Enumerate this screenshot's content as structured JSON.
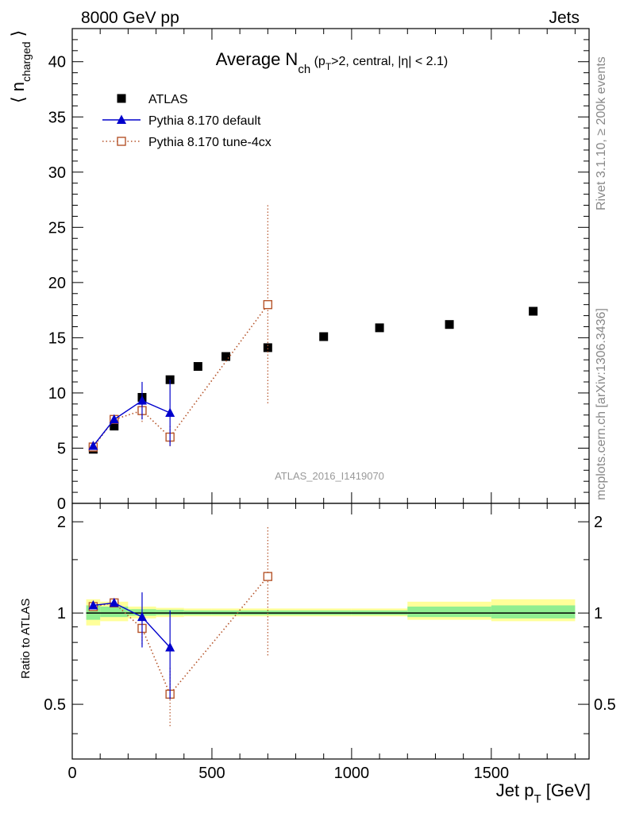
{
  "header": {
    "left": "8000 GeV pp",
    "right": "Jets"
  },
  "side_labels": {
    "rivet": "Rivet 3.1.10, ≥ 200k events",
    "mcplots": "mcplots.cern.ch [arXiv:1306.3436]"
  },
  "analysis_label": "ATLAS_2016_I1419070",
  "chart_data": [
    {
      "type": "scatter",
      "panel": "main",
      "title": "Average N_ch (p_T>2, central, |η| < 2.1)",
      "title_parts": {
        "main": "Average N",
        "sub1": "ch",
        "rest1": " (p",
        "sub2": "T",
        "rest2": ">2, central, |η| < 2.1)"
      },
      "ylabel": "⟨ n_charged ⟩",
      "ylabel_parts": {
        "main": "n",
        "sub": "charged"
      },
      "xlim": [
        0,
        1850
      ],
      "ylim": [
        0,
        43
      ],
      "yticks": [
        0,
        5,
        10,
        15,
        20,
        25,
        30,
        35,
        40
      ],
      "legend_position": "top-left",
      "series": [
        {
          "name": "ATLAS",
          "marker": "filled-square",
          "color": "#000000",
          "points": [
            {
              "x": 75,
              "y": 4.9
            },
            {
              "x": 150,
              "y": 7.0
            },
            {
              "x": 250,
              "y": 9.6
            },
            {
              "x": 350,
              "y": 11.2
            },
            {
              "x": 450,
              "y": 12.4
            },
            {
              "x": 550,
              "y": 13.3
            },
            {
              "x": 700,
              "y": 14.1
            },
            {
              "x": 900,
              "y": 15.1
            },
            {
              "x": 1100,
              "y": 15.9
            },
            {
              "x": 1350,
              "y": 16.2
            },
            {
              "x": 1650,
              "y": 17.4
            }
          ]
        },
        {
          "name": "Pythia 8.170 default",
          "marker": "filled-triangle",
          "line": "solid",
          "color": "#0000cc",
          "points": [
            {
              "x": 75,
              "y": 5.2,
              "err": 0.2
            },
            {
              "x": 150,
              "y": 7.6,
              "err": 0.3
            },
            {
              "x": 250,
              "y": 9.3,
              "err": 1.7
            },
            {
              "x": 350,
              "y": 8.2,
              "err": 3.0
            }
          ]
        },
        {
          "name": "Pythia 8.170 tune-4cx",
          "marker": "open-square",
          "line": "dotted",
          "color": "#b5542a",
          "points": [
            {
              "x": 75,
              "y": 5.1,
              "err": 0.2
            },
            {
              "x": 150,
              "y": 7.6,
              "err": 0.3
            },
            {
              "x": 250,
              "y": 8.4,
              "err": 1.1
            },
            {
              "x": 350,
              "y": 6.0,
              "err": 1.0
            },
            {
              "x": 700,
              "y": 18.0,
              "err": 9.0
            }
          ]
        }
      ]
    },
    {
      "type": "scatter",
      "panel": "ratio",
      "ylabel": "Ratio to ATLAS",
      "xlabel": "Jet p_T [GeV]",
      "xlabel_parts": {
        "main": "Jet p",
        "sub": "T",
        "rest": " [GeV]"
      },
      "xlim": [
        0,
        1850
      ],
      "ylim": [
        0.33,
        2.3
      ],
      "xticks": [
        0,
        500,
        1000,
        1500
      ],
      "yticks": [
        0.5,
        1,
        2
      ],
      "yticks_labels": [
        "0.5",
        "1",
        "2"
      ],
      "reference": 1.0,
      "uncertainty_bands": [
        {
          "x0": 50,
          "x1": 100,
          "stat_lo": 0.95,
          "stat_hi": 1.06,
          "tot_lo": 0.91,
          "tot_hi": 1.11
        },
        {
          "x0": 100,
          "x1": 200,
          "stat_lo": 0.97,
          "stat_hi": 1.05,
          "tot_lo": 0.94,
          "tot_hi": 1.09
        },
        {
          "x0": 200,
          "x1": 300,
          "stat_lo": 0.98,
          "stat_hi": 1.03,
          "tot_lo": 0.96,
          "tot_hi": 1.05
        },
        {
          "x0": 300,
          "x1": 400,
          "stat_lo": 0.985,
          "stat_hi": 1.025,
          "tot_lo": 0.97,
          "tot_hi": 1.04
        },
        {
          "x0": 400,
          "x1": 500,
          "stat_lo": 0.985,
          "stat_hi": 1.02,
          "tot_lo": 0.975,
          "tot_hi": 1.035
        },
        {
          "x0": 500,
          "x1": 600,
          "stat_lo": 0.985,
          "stat_hi": 1.02,
          "tot_lo": 0.975,
          "tot_hi": 1.035
        },
        {
          "x0": 600,
          "x1": 800,
          "stat_lo": 0.985,
          "stat_hi": 1.02,
          "tot_lo": 0.975,
          "tot_hi": 1.035
        },
        {
          "x0": 800,
          "x1": 1000,
          "stat_lo": 0.985,
          "stat_hi": 1.02,
          "tot_lo": 0.975,
          "tot_hi": 1.035
        },
        {
          "x0": 1000,
          "x1": 1200,
          "stat_lo": 0.985,
          "stat_hi": 1.02,
          "tot_lo": 0.975,
          "tot_hi": 1.035
        },
        {
          "x0": 1200,
          "x1": 1500,
          "stat_lo": 0.97,
          "stat_hi": 1.05,
          "tot_lo": 0.95,
          "tot_hi": 1.09
        },
        {
          "x0": 1500,
          "x1": 1800,
          "stat_lo": 0.96,
          "stat_hi": 1.06,
          "tot_lo": 0.94,
          "tot_hi": 1.11
        }
      ],
      "series": [
        {
          "name": "Pythia 8.170 default",
          "marker": "filled-triangle",
          "line": "solid",
          "color": "#0000cc",
          "points": [
            {
              "x": 75,
              "y": 1.06,
              "err": 0.03
            },
            {
              "x": 150,
              "y": 1.08,
              "err": 0.03
            },
            {
              "x": 250,
              "y": 0.97,
              "err": 0.2
            },
            {
              "x": 350,
              "y": 0.77,
              "err": 0.25
            }
          ]
        },
        {
          "name": "Pythia 8.170 tune-4cx",
          "marker": "open-square",
          "line": "dotted",
          "color": "#b5542a",
          "points": [
            {
              "x": 75,
              "y": 1.05,
              "err": 0.03
            },
            {
              "x": 150,
              "y": 1.08,
              "err": 0.03
            },
            {
              "x": 250,
              "y": 0.89,
              "err": 0.1
            },
            {
              "x": 350,
              "y": 0.54,
              "err": 0.12
            },
            {
              "x": 700,
              "y": 1.32,
              "err": 0.6
            }
          ]
        }
      ]
    }
  ],
  "colors": {
    "stat_band": "#90ee90",
    "total_band": "#ffff99"
  }
}
